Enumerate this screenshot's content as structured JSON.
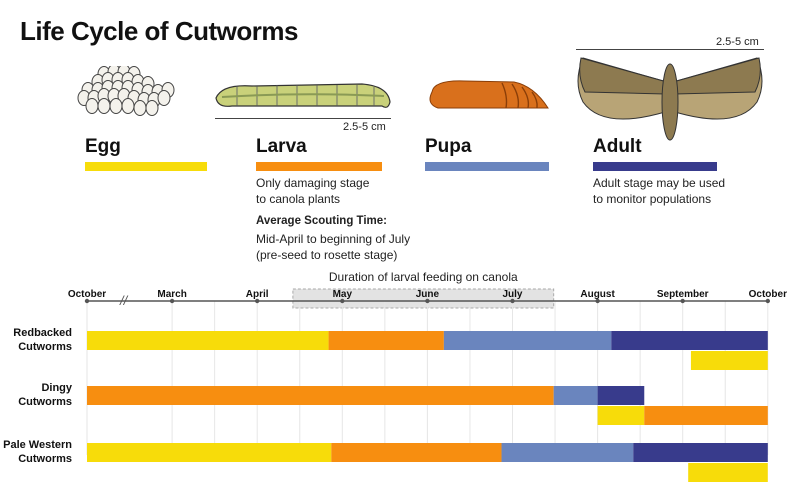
{
  "title": "Life Cycle of Cutworms",
  "colors": {
    "egg": "#f7dc0a",
    "larva": "#f78e10",
    "pupa": "#6a85be",
    "adult": "#383b8c",
    "shade": "#e3e3e3"
  },
  "stages": [
    {
      "key": "egg",
      "name": "Egg"
    },
    {
      "key": "larva",
      "name": "Larva",
      "size": "2.5-5 cm",
      "desc1": "Only damaging stage",
      "desc2": "to canola plants",
      "scouting_title": "Average Scouting Time:",
      "scouting1": "Mid-April to beginning of July",
      "scouting2": "(pre-seed to rosette stage)"
    },
    {
      "key": "pupa",
      "name": "Pupa"
    },
    {
      "key": "adult",
      "name": "Adult",
      "size": "2.5-5 cm",
      "desc1": "Adult stage may be used",
      "desc2": "to monitor populations"
    }
  ],
  "timeline": {
    "shade_label": "Duration of  larval feeding on canola",
    "shade_range": [
      "Apr 14",
      "Jul 16"
    ],
    "months": [
      "October",
      "March",
      "April",
      "May",
      "June",
      "July",
      "August",
      "September",
      "October"
    ],
    "axis_break_after": "October",
    "rows": [
      {
        "label1": "Redbacked",
        "label2": "Cutworms",
        "lines": [
          [
            [
              "egg",
              "start",
              "Apr 27"
            ],
            [
              "larva",
              "Apr 27",
              "Jun 7"
            ],
            [
              "pupa",
              "Jun 7",
              "Aug 6"
            ],
            [
              "adult",
              "Aug 6",
              "end"
            ]
          ],
          [
            [
              "egg",
              "Sep 4",
              "end"
            ]
          ]
        ]
      },
      {
        "label1": "Dingy",
        "label2": "Cutworms",
        "lines": [
          [
            [
              "larva",
              "start",
              "Jul 16"
            ],
            [
              "pupa",
              "Jul 16",
              "Aug 1"
            ],
            [
              "adult",
              "Aug 1",
              "Aug 18"
            ]
          ],
          [
            [
              "egg",
              "Aug 1",
              "Aug 18"
            ],
            [
              "larva",
              "Aug 18",
              "end"
            ]
          ]
        ]
      },
      {
        "label1": "Pale Western",
        "label2": "Cutworms",
        "lines": [
          [
            [
              "egg",
              "start",
              "Apr 28"
            ],
            [
              "larva",
              "Apr 28",
              "Jun 28"
            ],
            [
              "pupa",
              "Jun 28",
              "Aug 14"
            ],
            [
              "adult",
              "Aug 14",
              "end"
            ]
          ],
          [
            [
              "egg",
              "Sep 3",
              "end"
            ]
          ]
        ]
      }
    ]
  }
}
